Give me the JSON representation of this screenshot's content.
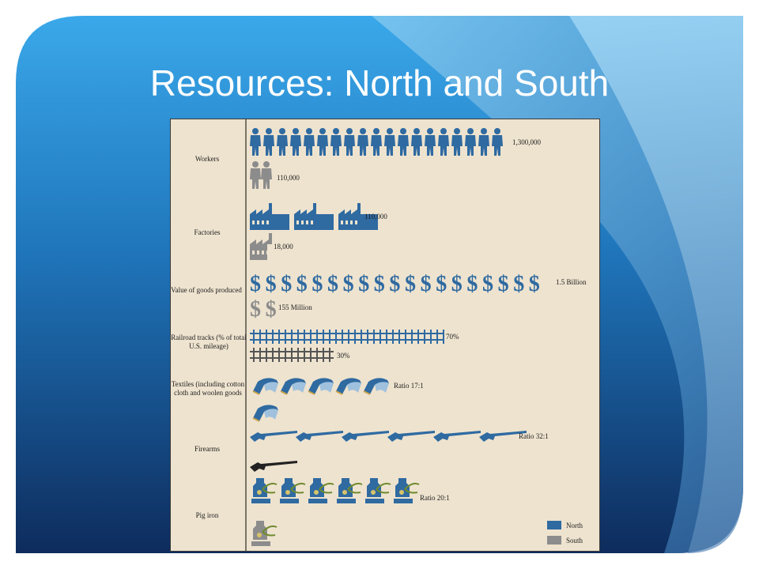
{
  "slide": {
    "title": "Resources: North and South"
  },
  "colors": {
    "north": "#2f6aa1",
    "south": "#8c8c8c",
    "panel_bg": "#eee3cf",
    "slide_bg_top": "#3aa4e6",
    "slide_bg_bottom": "#0f2f60"
  },
  "chart_data": {
    "type": "pictograph",
    "categories": [
      {
        "key": "workers",
        "label": "Workers",
        "icon": "worker-icon",
        "north_value": "1,300,000",
        "south_value": "110,000",
        "north_icons": 19,
        "south_icons": 2
      },
      {
        "key": "factories",
        "label": "Factories",
        "icon": "factory-icon",
        "north_value": "110,000",
        "south_value": "18,000",
        "north_icons": 3,
        "south_icons": 1
      },
      {
        "key": "goods",
        "label": "Value of goods produced",
        "icon": "dollar-icon",
        "north_value": "1.5 Billion",
        "south_value": "155 Million",
        "north_icons": 19,
        "south_icons": 2
      },
      {
        "key": "railroad",
        "label": "Railroad tracks (% of total U.S. mileage)",
        "icon": "railroad-track-icon",
        "north_value": "70%",
        "south_value": "30%",
        "north_percent": 70,
        "south_percent": 30
      },
      {
        "key": "textiles",
        "label": "Textiles (including cotton cloth and woolen goods",
        "icon": "textile-icon",
        "north_value": "Ratio 17:1",
        "north_icons": 5,
        "south_icons": 0.3
      },
      {
        "key": "firearms",
        "label": "Firearms",
        "icon": "rifle-icon",
        "north_value": "Ratio 32:1",
        "north_icons": 6,
        "south_icons": 0.2
      },
      {
        "key": "pig_iron",
        "label": "Pig iron",
        "icon": "furnace-icon",
        "north_value": "Ratio 20:1",
        "north_icons": 6,
        "south_icons": 1
      }
    ],
    "legend": [
      {
        "name": "North",
        "color": "#2f6aa1"
      },
      {
        "name": "South",
        "color": "#8c8c8c"
      }
    ],
    "legend_position": "bottom-right"
  }
}
